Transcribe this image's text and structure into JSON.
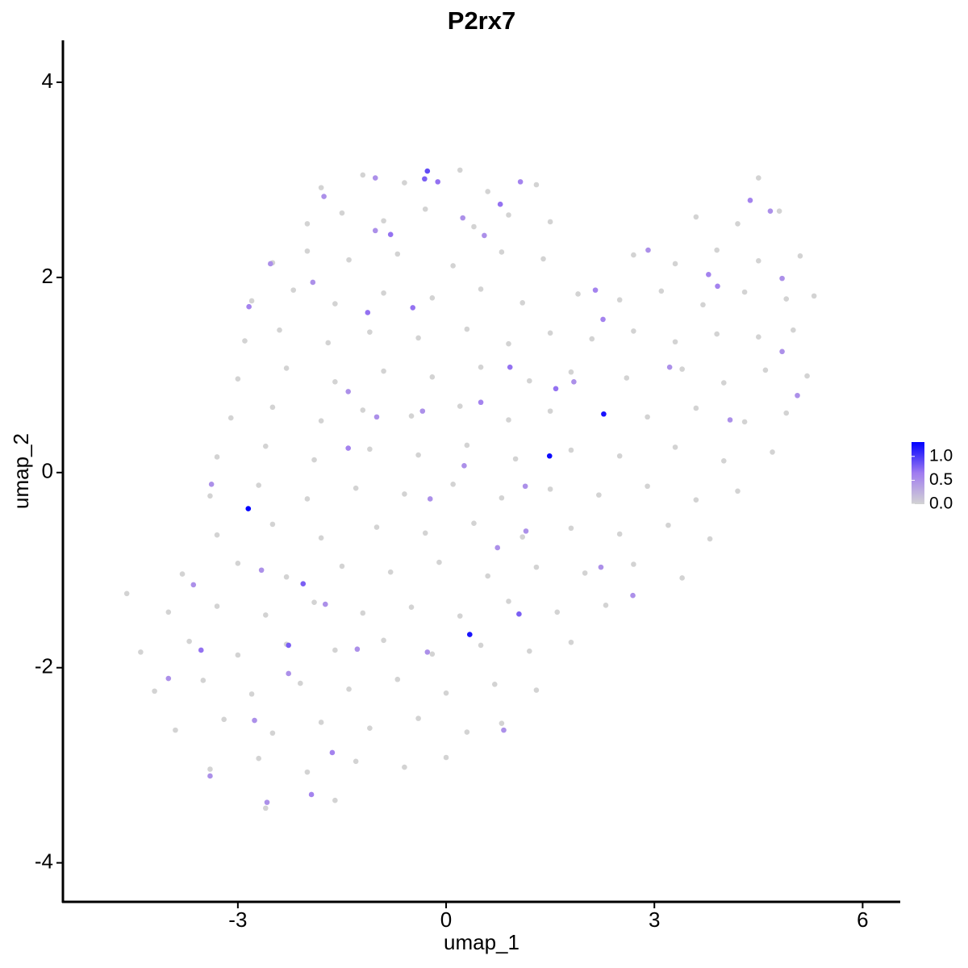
{
  "chart_data": {
    "type": "scatter",
    "title": "P2rx7",
    "x_label": "umap_1",
    "y_label": "umap_2",
    "xlim": [
      -5.52,
      6.53
    ],
    "ylim": [
      -4.4,
      4.43
    ],
    "xticks": [
      -3,
      0,
      3,
      6
    ],
    "yticks": [
      -4,
      -2,
      0,
      2,
      4
    ],
    "clim": [
      0,
      1.3
    ],
    "cticks": [
      {
        "value": 0,
        "label": "0.0"
      },
      0.5,
      {
        "value": 1,
        "label": "1.0"
      }
    ],
    "colors": [
      "#d3d3d3",
      "#a07cf0",
      "#0000ff"
    ],
    "grid": false,
    "legend_position": "right",
    "x": [
      -1.8,
      -1.2,
      -0.6,
      0.2,
      0.6,
      1.3,
      4.5,
      -2.0,
      -1.5,
      -0.9,
      -0.3,
      0.4,
      0.9,
      1.5,
      3.6,
      4.2,
      4.8,
      -2.5,
      -2.0,
      -1.4,
      -0.7,
      0.1,
      0.8,
      1.4,
      2.7,
      3.3,
      3.9,
      4.5,
      5.1,
      -2.8,
      -2.2,
      -1.6,
      -0.9,
      -0.2,
      0.5,
      1.1,
      1.9,
      2.5,
      3.1,
      3.7,
      4.3,
      4.9,
      5.3,
      -2.9,
      -2.4,
      -1.7,
      -1.1,
      -0.4,
      0.3,
      0.9,
      1.5,
      2.1,
      2.7,
      3.3,
      3.9,
      4.5,
      5.0,
      -3.0,
      -2.3,
      -1.6,
      -0.9,
      -0.2,
      0.5,
      1.2,
      1.8,
      2.6,
      3.4,
      4.0,
      4.6,
      5.2,
      -3.1,
      -2.5,
      -1.8,
      -1.2,
      -0.5,
      0.2,
      0.9,
      1.5,
      2.9,
      3.6,
      4.3,
      4.9,
      -3.3,
      -2.6,
      -1.9,
      -1.1,
      -0.4,
      0.3,
      1.0,
      1.8,
      2.5,
      3.3,
      4.0,
      4.7,
      -3.4,
      -2.7,
      -2.0,
      -1.3,
      -0.6,
      0.1,
      0.8,
      1.5,
      2.2,
      2.9,
      3.6,
      4.2,
      -3.3,
      -2.5,
      -1.8,
      -1.0,
      -0.3,
      0.4,
      1.1,
      1.8,
      2.5,
      3.2,
      3.8,
      -3.8,
      -3.0,
      -2.3,
      -1.5,
      -0.8,
      -0.1,
      0.6,
      1.3,
      2.0,
      2.7,
      3.4,
      -4.6,
      -4.0,
      -3.3,
      -2.6,
      -1.9,
      -1.2,
      -0.5,
      0.2,
      0.9,
      1.6,
      2.3,
      -4.4,
      -3.7,
      -3.0,
      -2.3,
      -1.6,
      -0.9,
      -0.2,
      0.5,
      1.2,
      1.8,
      -4.2,
      -3.5,
      -2.8,
      -2.1,
      -1.4,
      -0.7,
      0.0,
      0.7,
      1.3,
      -3.9,
      -3.2,
      -2.5,
      -1.8,
      -1.1,
      -0.4,
      0.3,
      0.8,
      -3.4,
      -2.7,
      -2.0,
      -1.3,
      -0.6,
      0.0,
      -2.6,
      -1.6,
      -2.85,
      1.49,
      2.27,
      0.34,
      -0.27,
      -0.31,
      -0.12,
      -2.06,
      1.05,
      -2.27,
      -3.53,
      -1.13,
      0.92,
      1.58,
      -0.8,
      0.78,
      -0.48,
      1.07,
      -2.84,
      -2.53,
      -1.92,
      0.5,
      -0.34,
      1.14,
      2.23,
      2.69,
      3.22,
      3.91,
      3.78,
      4.38,
      4.67,
      4.84,
      5.06,
      4.84,
      4.09,
      1.84,
      2.15,
      2.26,
      2.91,
      -1.64,
      -1.94,
      -3.4,
      -2.58,
      -2.76,
      -4.0,
      -3.64,
      -3.38,
      -2.66,
      -1.28,
      -0.27,
      0.83,
      1.15,
      -0.23,
      -1.74,
      -2.27,
      -1.41,
      -1.0,
      -1.41,
      0.26,
      0.74,
      0.24,
      -1.76,
      -1.02,
      -1.02,
      0.55
    ],
    "y": [
      2.92,
      3.05,
      2.97,
      3.1,
      2.88,
      2.95,
      3.02,
      2.55,
      2.66,
      2.58,
      2.7,
      2.52,
      2.64,
      2.57,
      2.62,
      2.55,
      2.68,
      2.15,
      2.27,
      2.18,
      2.24,
      2.12,
      2.26,
      2.19,
      2.23,
      2.14,
      2.28,
      2.17,
      2.22,
      1.76,
      1.87,
      1.73,
      1.84,
      1.79,
      1.88,
      1.74,
      1.83,
      1.77,
      1.86,
      1.72,
      1.85,
      1.78,
      1.81,
      1.35,
      1.46,
      1.33,
      1.44,
      1.38,
      1.47,
      1.32,
      1.43,
      1.37,
      1.45,
      1.34,
      1.42,
      1.39,
      1.46,
      0.96,
      1.07,
      0.93,
      1.04,
      0.98,
      1.08,
      0.94,
      1.03,
      0.97,
      1.06,
      0.92,
      1.05,
      0.99,
      0.56,
      0.67,
      0.53,
      0.64,
      0.58,
      0.68,
      0.54,
      0.63,
      0.57,
      0.66,
      0.52,
      0.61,
      0.16,
      0.27,
      0.13,
      0.24,
      0.18,
      0.28,
      0.14,
      0.23,
      0.17,
      0.26,
      0.12,
      0.21,
      -0.24,
      -0.13,
      -0.27,
      -0.16,
      -0.22,
      -0.12,
      -0.26,
      -0.17,
      -0.23,
      -0.14,
      -0.28,
      -0.19,
      -0.64,
      -0.53,
      -0.67,
      -0.56,
      -0.62,
      -0.52,
      -0.66,
      -0.57,
      -0.63,
      -0.54,
      -0.68,
      -1.04,
      -0.93,
      -1.07,
      -0.96,
      -1.02,
      -0.92,
      -1.06,
      -0.97,
      -1.03,
      -0.94,
      -1.08,
      -1.24,
      -1.43,
      -1.37,
      -1.46,
      -1.33,
      -1.44,
      -1.38,
      -1.47,
      -1.32,
      -1.43,
      -1.36,
      -1.84,
      -1.73,
      -1.87,
      -1.76,
      -1.82,
      -1.72,
      -1.86,
      -1.77,
      -1.83,
      -1.74,
      -2.24,
      -2.13,
      -2.27,
      -2.16,
      -2.22,
      -2.12,
      -2.26,
      -2.17,
      -2.23,
      -2.64,
      -2.53,
      -2.67,
      -2.56,
      -2.62,
      -2.52,
      -2.66,
      -2.57,
      -3.04,
      -2.93,
      -3.07,
      -2.96,
      -3.02,
      -2.92,
      -3.44,
      -3.36,
      -0.37,
      0.17,
      0.6,
      -1.66,
      3.09,
      3.01,
      2.98,
      -1.14,
      -1.45,
      -1.77,
      -1.82,
      1.64,
      1.08,
      0.86,
      2.44,
      2.75,
      1.69,
      2.98,
      1.7,
      2.14,
      1.95,
      0.72,
      0.63,
      -0.14,
      -0.97,
      -1.26,
      1.08,
      1.91,
      2.03,
      2.79,
      2.68,
      1.99,
      0.79,
      1.24,
      0.54,
      0.93,
      1.87,
      1.57,
      2.28,
      -2.87,
      -3.3,
      -3.11,
      -3.38,
      -2.54,
      -2.11,
      -1.15,
      -0.12,
      -1.0,
      -1.81,
      -1.84,
      -2.64,
      -0.6,
      -0.27,
      -1.35,
      -2.06,
      0.25,
      0.57,
      0.83,
      0.07,
      -0.77,
      2.61,
      2.83,
      3.02,
      2.48,
      2.43
    ],
    "values": [
      0,
      0,
      0,
      0,
      0,
      0,
      0,
      0,
      0,
      0,
      0,
      0,
      0,
      0,
      0,
      0,
      0,
      0,
      0,
      0,
      0,
      0,
      0,
      0,
      0,
      0,
      0,
      0,
      0,
      0,
      0,
      0,
      0,
      0,
      0,
      0,
      0,
      0,
      0,
      0,
      0,
      0,
      0,
      0,
      0,
      0,
      0,
      0,
      0,
      0,
      0,
      0,
      0,
      0,
      0,
      0,
      0,
      0,
      0,
      0,
      0,
      0,
      0,
      0,
      0,
      0,
      0,
      0,
      0,
      0,
      0,
      0,
      0,
      0,
      0,
      0,
      0,
      0,
      0,
      0,
      0,
      0,
      0,
      0,
      0,
      0,
      0,
      0,
      0,
      0,
      0,
      0,
      0,
      0,
      0,
      0,
      0,
      0,
      0,
      0,
      0,
      0,
      0,
      0,
      0,
      0,
      0,
      0,
      0,
      0,
      0,
      0,
      0,
      0,
      0,
      0,
      0,
      0,
      0,
      0,
      0,
      0,
      0,
      0,
      0,
      0,
      0,
      0,
      0,
      0,
      0,
      0,
      0,
      0,
      0,
      0,
      0,
      0,
      0,
      0,
      0,
      0,
      0,
      0,
      0,
      0,
      0,
      0,
      0,
      0,
      0,
      0,
      0,
      0,
      0,
      0,
      0,
      0,
      0,
      0,
      0,
      0,
      0,
      0,
      0,
      0,
      0,
      0,
      0,
      0,
      0,
      0,
      0,
      0,
      1.3,
      1.25,
      1.2,
      1.2,
      0.9,
      0.8,
      0.7,
      0.8,
      0.8,
      0.8,
      0.7,
      0.7,
      0.7,
      0.7,
      0.7,
      0.7,
      0.7,
      0.6,
      0.6,
      0.5,
      0.5,
      0.6,
      0.5,
      0.5,
      0.5,
      0.5,
      0.5,
      0.6,
      0.6,
      0.6,
      0.5,
      0.5,
      0.5,
      0.5,
      0.5,
      0.5,
      0.6,
      0.6,
      0.5,
      0.6,
      0.6,
      0.5,
      0.5,
      0.5,
      0.5,
      0.5,
      0.5,
      0.5,
      0.5,
      0.5,
      0.5,
      0.5,
      0.5,
      0.5,
      0.5,
      0.6,
      0.5,
      0.5,
      0.5,
      0.5,
      0.5,
      0.5,
      0.5,
      0.5,
      0.5
    ]
  }
}
